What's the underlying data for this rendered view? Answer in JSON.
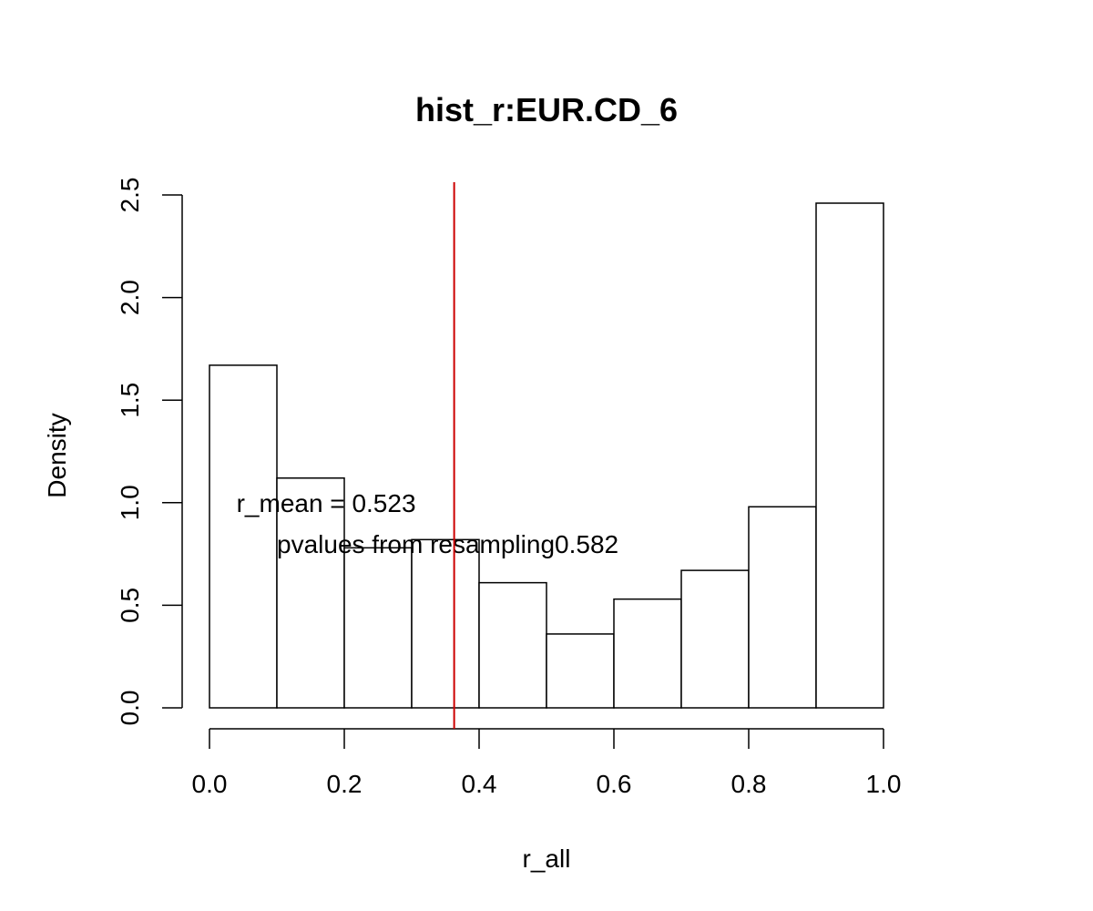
{
  "chart_data": {
    "type": "bar",
    "title": "hist_r:EUR.CD_6",
    "xlabel": "r_all",
    "ylabel": "Density",
    "xlim": [
      0,
      1
    ],
    "ylim": [
      0,
      2.5
    ],
    "bins": [
      {
        "from": 0.0,
        "to": 0.1,
        "density": 1.67
      },
      {
        "from": 0.1,
        "to": 0.2,
        "density": 1.12
      },
      {
        "from": 0.2,
        "to": 0.3,
        "density": 0.78
      },
      {
        "from": 0.3,
        "to": 0.4,
        "density": 0.82
      },
      {
        "from": 0.4,
        "to": 0.5,
        "density": 0.61
      },
      {
        "from": 0.5,
        "to": 0.6,
        "density": 0.36
      },
      {
        "from": 0.6,
        "to": 0.7,
        "density": 0.53
      },
      {
        "from": 0.7,
        "to": 0.8,
        "density": 0.67
      },
      {
        "from": 0.8,
        "to": 0.9,
        "density": 0.98
      },
      {
        "from": 0.9,
        "to": 1.0,
        "density": 2.46
      }
    ],
    "xticks": [
      "0.0",
      "0.2",
      "0.4",
      "0.6",
      "0.8",
      "1.0"
    ],
    "xtick_values": [
      0.0,
      0.2,
      0.4,
      0.6,
      0.8,
      1.0
    ],
    "yticks": [
      "0.0",
      "0.5",
      "1.0",
      "1.5",
      "2.0",
      "2.5"
    ],
    "ytick_values": [
      0.0,
      0.5,
      1.0,
      1.5,
      2.0,
      2.5
    ],
    "vline": {
      "x": 0.363,
      "color": "#cc0000"
    },
    "annotations": [
      {
        "text": "r_mean = 0.523",
        "x": 0.04,
        "y": 1.0
      },
      {
        "text": "pvalues from resampling0.582",
        "x": 0.1,
        "y": 0.8
      }
    ],
    "grid": false,
    "bar_fill": "#ffffff",
    "bar_stroke": "#000000"
  }
}
